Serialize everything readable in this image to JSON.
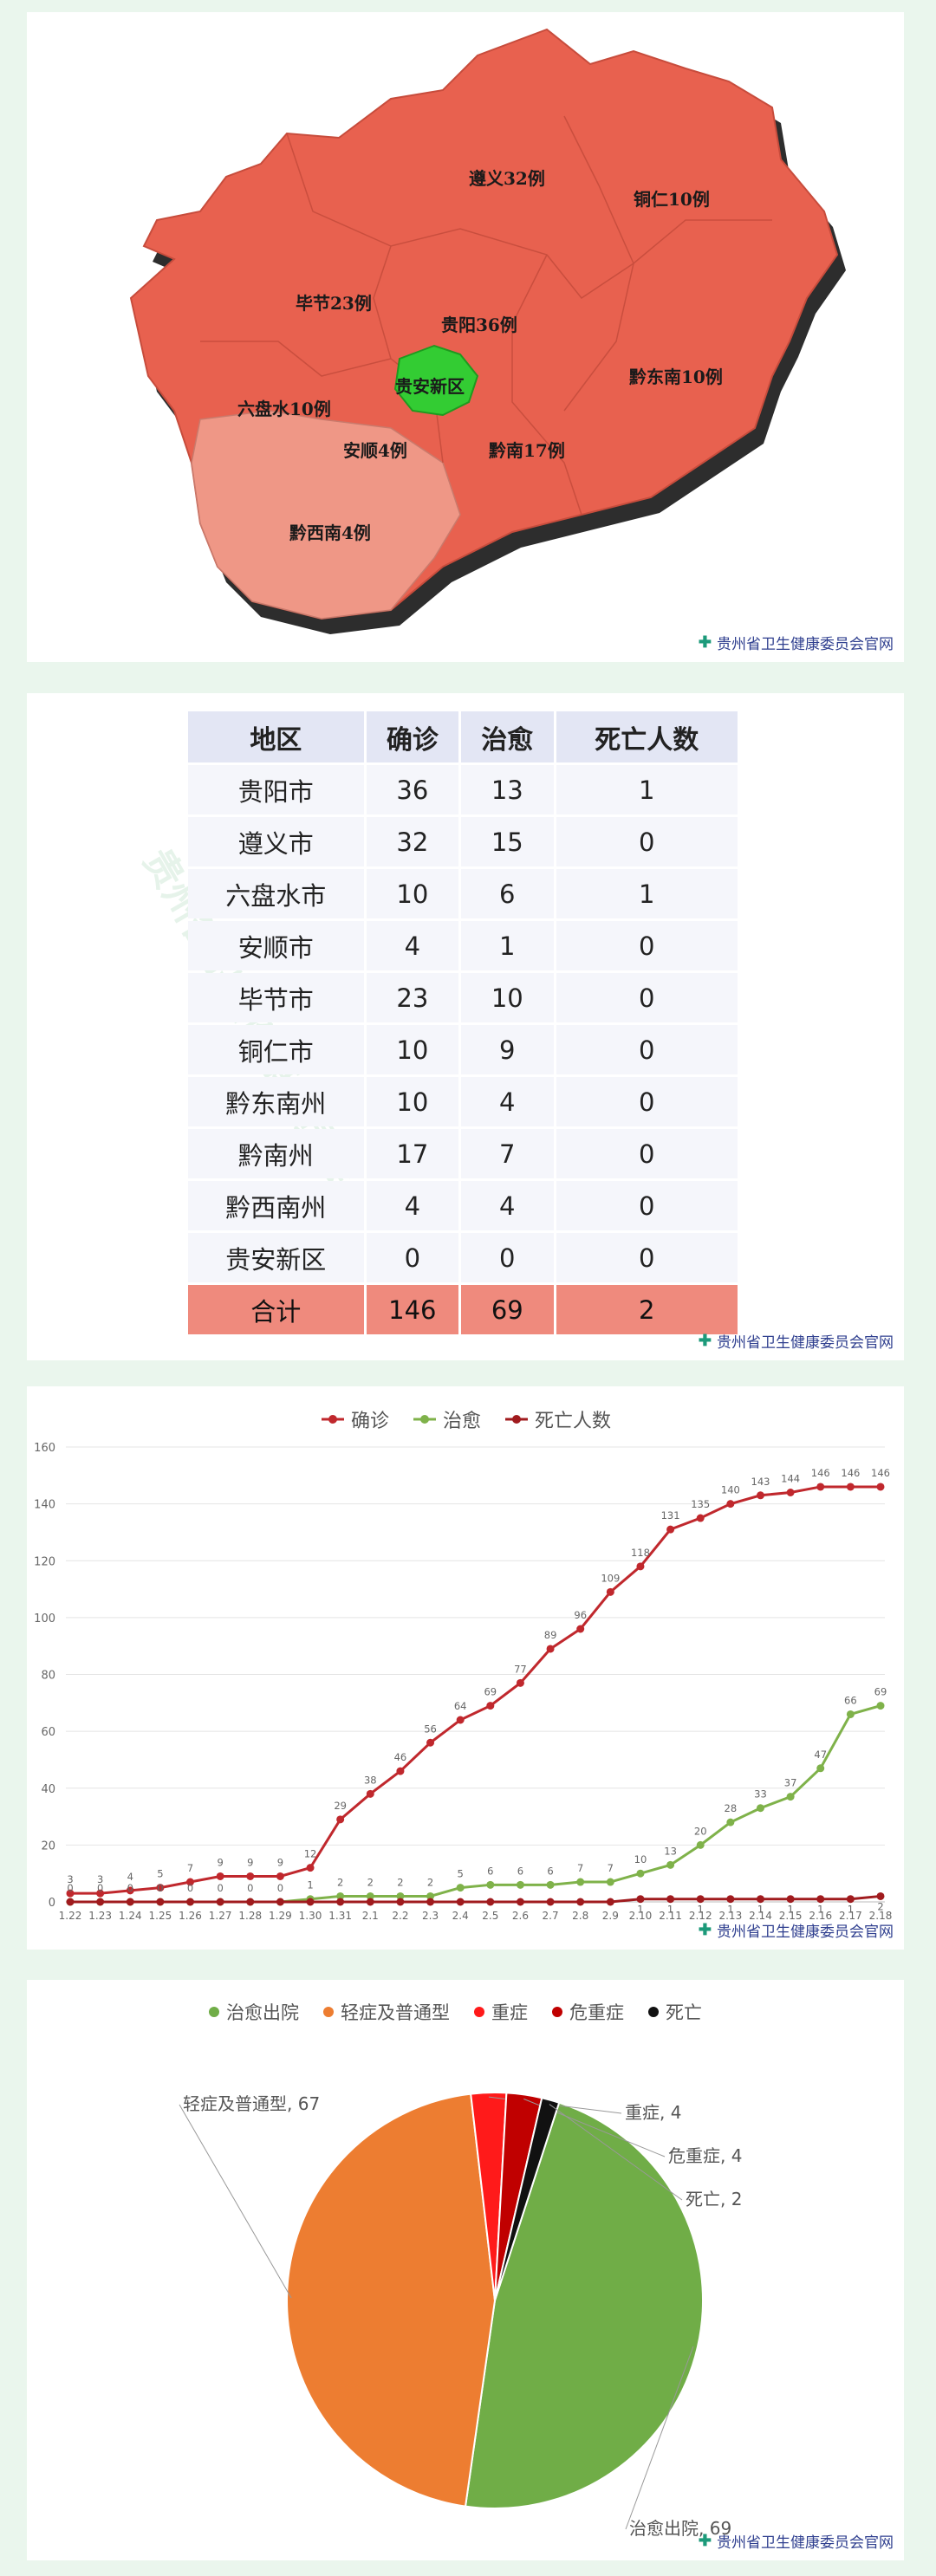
{
  "credit": "贵州省卫生健康委员会官网",
  "watermark": "贵州省卫生健康委员会",
  "map": {
    "labels": [
      {
        "id": "zunyi",
        "text": "遵义32例"
      },
      {
        "id": "tongren",
        "text": "铜仁10例"
      },
      {
        "id": "bijie",
        "text": "毕节23例"
      },
      {
        "id": "guiyang",
        "text": "贵阳36例"
      },
      {
        "id": "guianxinqu",
        "text": "贵安新区"
      },
      {
        "id": "qiandongnan",
        "text": "黔东南10例"
      },
      {
        "id": "liupanshui",
        "text": "六盘水10例"
      },
      {
        "id": "anshun",
        "text": "安顺4例"
      },
      {
        "id": "qiannan",
        "text": "黔南17例"
      },
      {
        "id": "qianxinan",
        "text": "黔西南4例"
      }
    ],
    "colors": {
      "main": "#e8614f",
      "light": "#ef9786",
      "highlight": "#33cc33",
      "edge": "#3a3a3a"
    }
  },
  "table": {
    "headers": [
      "地区",
      "确诊",
      "治愈",
      "死亡人数"
    ],
    "rows": [
      [
        "贵阳市",
        "36",
        "13",
        "1"
      ],
      [
        "遵义市",
        "32",
        "15",
        "0"
      ],
      [
        "六盘水市",
        "10",
        "6",
        "1"
      ],
      [
        "安顺市",
        "4",
        "1",
        "0"
      ],
      [
        "毕节市",
        "23",
        "10",
        "0"
      ],
      [
        "铜仁市",
        "10",
        "9",
        "0"
      ],
      [
        "黔东南州",
        "10",
        "4",
        "0"
      ],
      [
        "黔南州",
        "17",
        "7",
        "0"
      ],
      [
        "黔西南州",
        "4",
        "4",
        "0"
      ],
      [
        "贵安新区",
        "0",
        "0",
        "0"
      ]
    ],
    "total": [
      "合计",
      "146",
      "69",
      "2"
    ]
  },
  "chart_data": [
    {
      "type": "line",
      "title": "",
      "xlabel": "",
      "ylabel": "",
      "ylim": [
        0,
        160
      ],
      "yticks": [
        "0",
        "20",
        "40",
        "60",
        "80",
        "100",
        "120",
        "140",
        "160"
      ],
      "x": [
        "1.22",
        "1.23",
        "1.24",
        "1.25",
        "1.26",
        "1.27",
        "1.28",
        "1.29",
        "1.30",
        "1.31",
        "2.1",
        "2.2",
        "2.3",
        "2.4",
        "2.5",
        "2.6",
        "2.7",
        "2.8",
        "2.9",
        "2.10",
        "2.11",
        "2.12",
        "2.13",
        "2.14",
        "2.15",
        "2.16",
        "2.17",
        "2.18"
      ],
      "series": [
        {
          "name": "确诊",
          "color": "#c0282d",
          "values": [
            3,
            3,
            4,
            5,
            7,
            9,
            9,
            9,
            12,
            29,
            38,
            46,
            56,
            64,
            69,
            77,
            89,
            96,
            109,
            118,
            131,
            135,
            140,
            143,
            144,
            146,
            146,
            146
          ]
        },
        {
          "name": "治愈",
          "color": "#7fb24a",
          "values": [
            0,
            0,
            0,
            0,
            0,
            0,
            0,
            0,
            1,
            2,
            2,
            2,
            2,
            5,
            6,
            6,
            6,
            7,
            7,
            10,
            13,
            20,
            28,
            33,
            37,
            47,
            66,
            69
          ]
        },
        {
          "name": "死亡人数",
          "color": "#a01b1e",
          "values": [
            0,
            0,
            0,
            0,
            0,
            0,
            0,
            0,
            0,
            0,
            0,
            0,
            0,
            0,
            0,
            0,
            0,
            0,
            0,
            1,
            1,
            1,
            1,
            1,
            1,
            1,
            1,
            2
          ]
        }
      ],
      "legend": "top-center",
      "grid": true
    },
    {
      "type": "pie",
      "slices": [
        {
          "name": "治愈出院",
          "value": 69,
          "color": "#70ad47",
          "label": "治愈出院, 69"
        },
        {
          "name": "轻症及普通型",
          "value": 67,
          "color": "#ed7d31",
          "label": "轻症及普通型, 67"
        },
        {
          "name": "重症",
          "value": 4,
          "color": "#ff1a1a",
          "label": "重症, 4"
        },
        {
          "name": "危重症",
          "value": 4,
          "color": "#c00000",
          "label": "危重症, 4"
        },
        {
          "name": "死亡",
          "value": 2,
          "color": "#111111",
          "label": "死亡, 2"
        }
      ],
      "legend": "top"
    }
  ]
}
